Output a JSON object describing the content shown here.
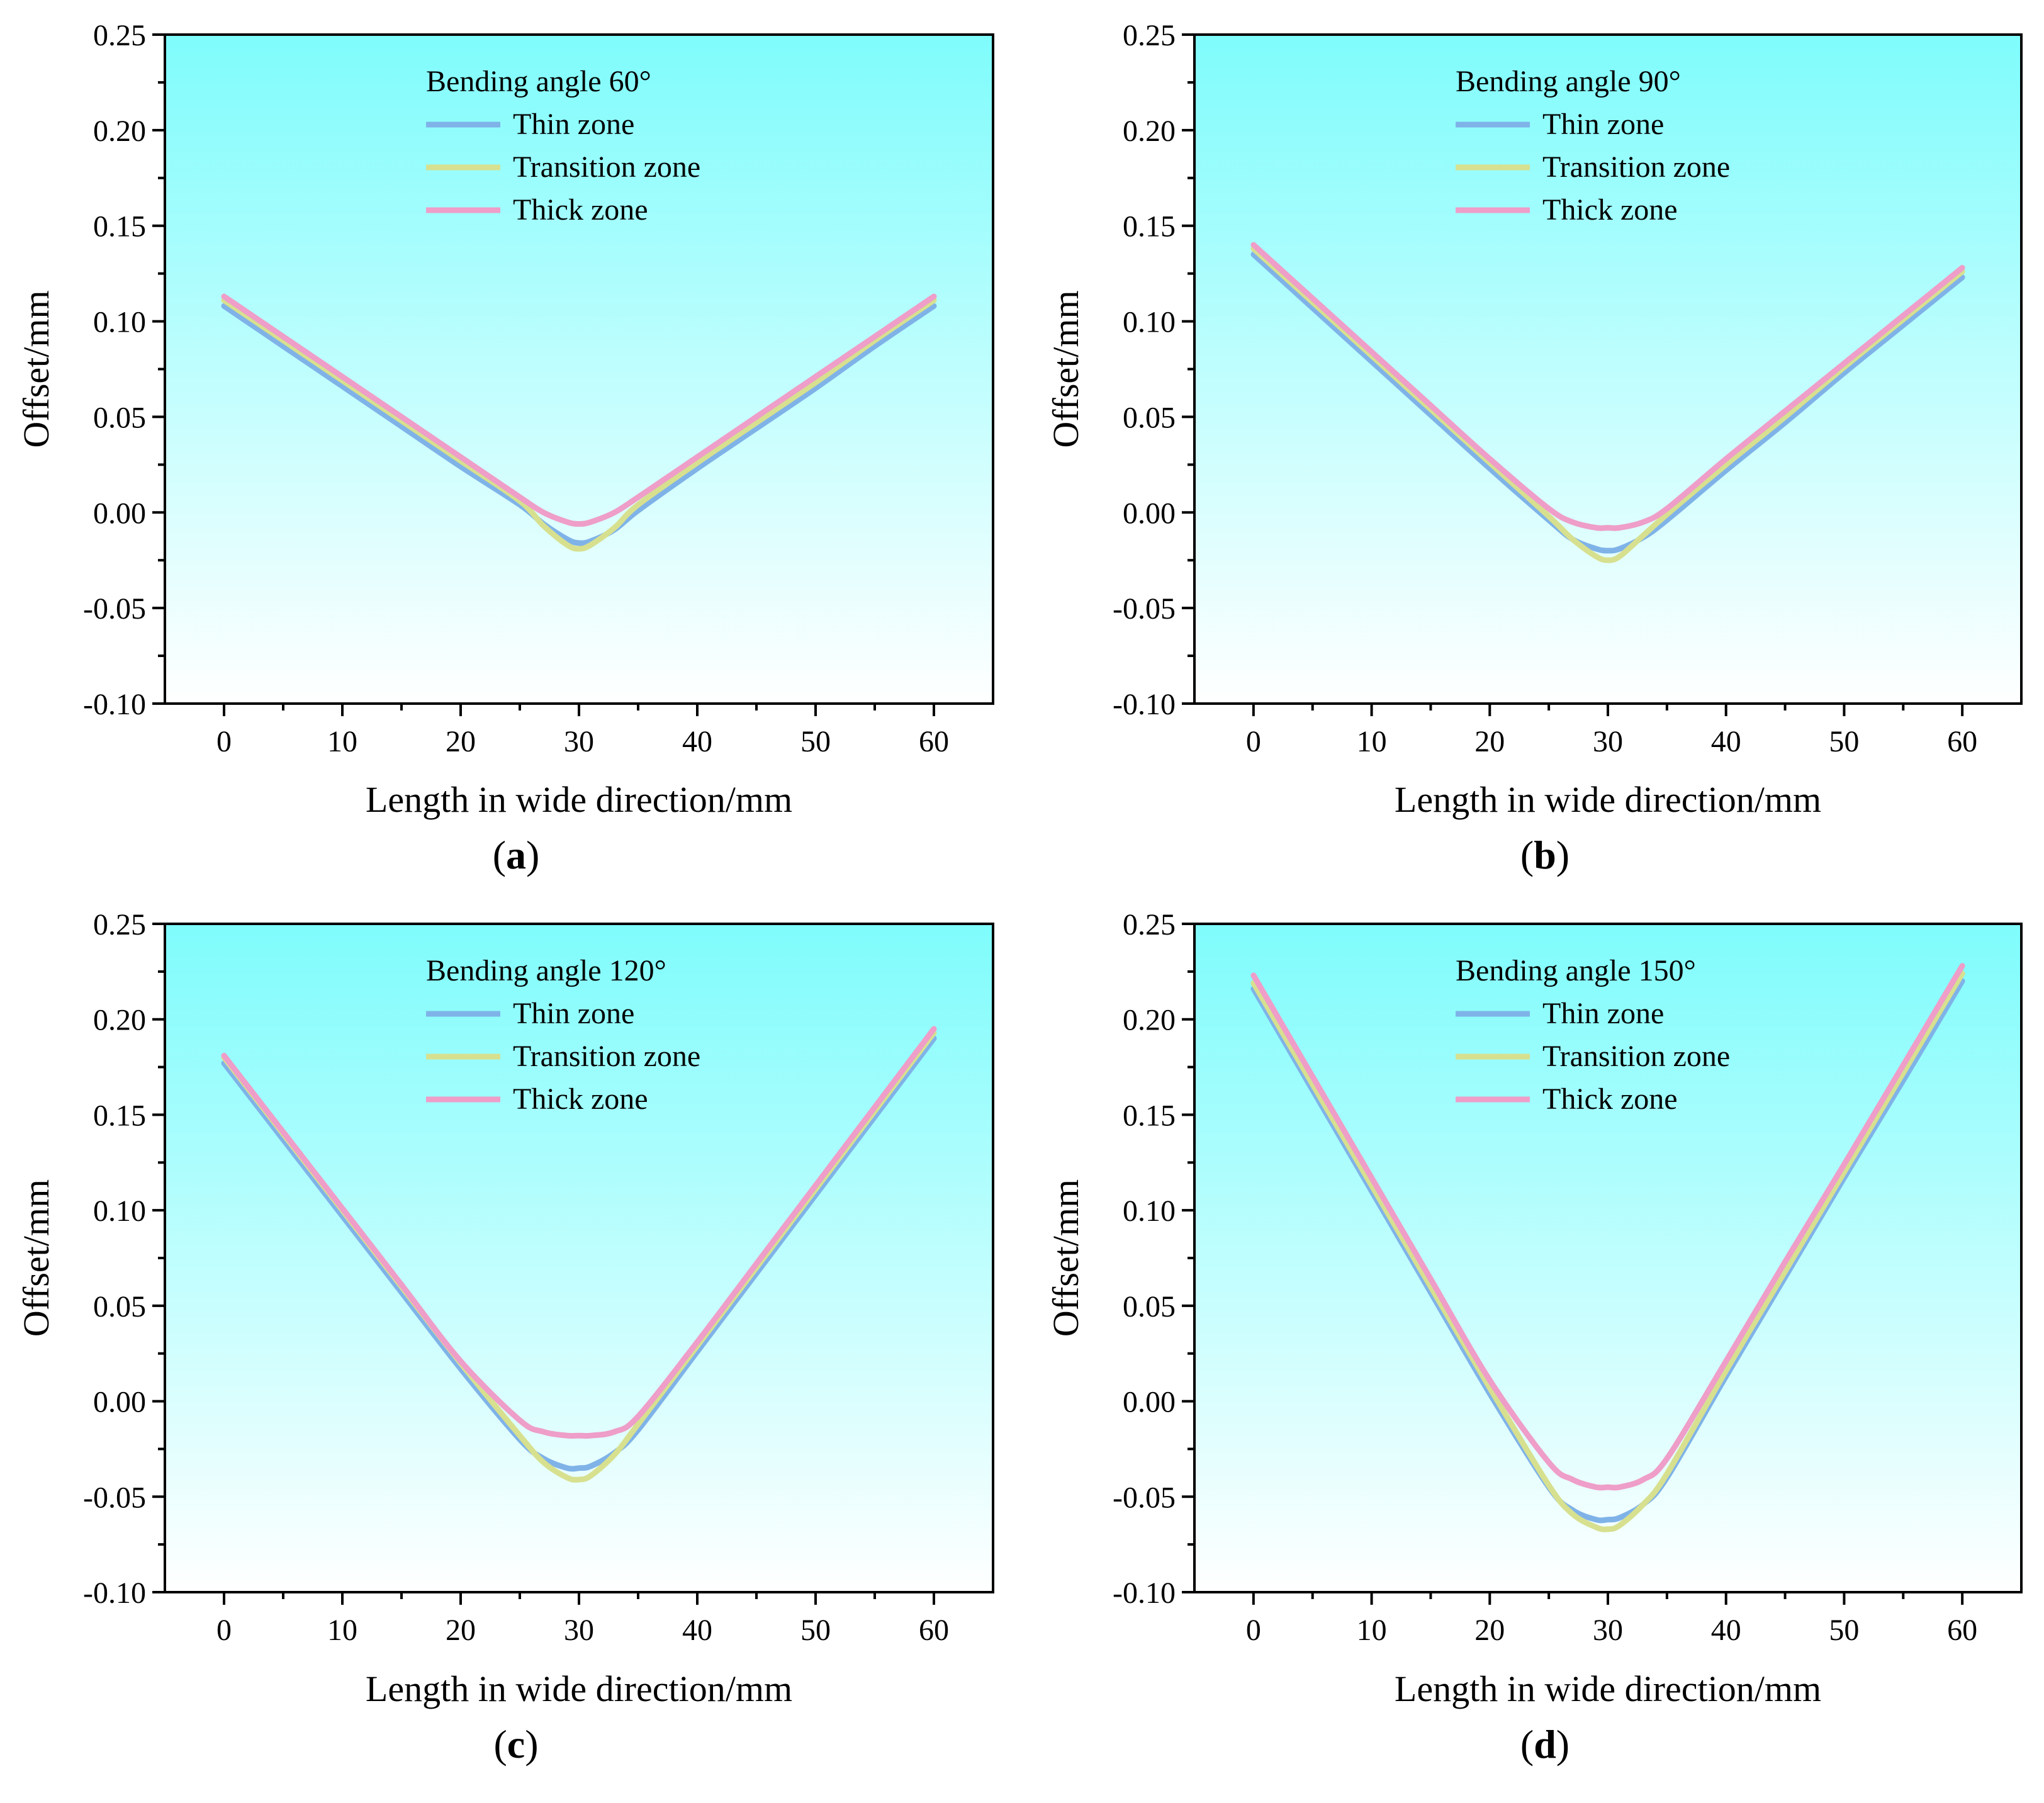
{
  "figure": {
    "colors": {
      "thin": "#7fb3e8",
      "transition": "#d7e08f",
      "thick": "#ee9ec8",
      "bg_top": "#7ffcfc",
      "bg_bottom": "#ffffff",
      "axis": "#000000"
    }
  },
  "chart_data": [
    {
      "type": "line",
      "panel_label": "a",
      "legend_title": "Bending angle 60°",
      "xlabel": "Length in wide direction/mm",
      "ylabel": "Offset/mm",
      "xlim": [
        -5,
        65
      ],
      "ylim": [
        -0.1,
        0.25
      ],
      "x_ticks": [
        "0",
        "10",
        "20",
        "30",
        "40",
        "50",
        "60"
      ],
      "y_ticks": [
        "0.25",
        "0.20",
        "0.15",
        "0.10",
        "0.05",
        "0.00",
        "-0.05",
        "-0.10"
      ],
      "series": [
        {
          "name": "Thin zone",
          "key": "thin",
          "x": [
            0,
            5,
            10,
            15,
            20,
            25,
            27,
            29,
            30,
            31,
            33,
            35,
            40,
            45,
            50,
            55,
            60
          ],
          "values": [
            0.108,
            0.087,
            0.066,
            0.045,
            0.024,
            0.004,
            -0.006,
            -0.014,
            -0.016,
            -0.015,
            -0.009,
            0.001,
            0.023,
            0.044,
            0.065,
            0.087,
            0.108
          ]
        },
        {
          "name": "Transition zone",
          "key": "transition",
          "x": [
            0,
            5,
            10,
            15,
            20,
            25,
            27,
            29,
            30,
            31,
            33,
            35,
            40,
            45,
            50,
            55,
            60
          ],
          "values": [
            0.111,
            0.09,
            0.069,
            0.048,
            0.027,
            0.006,
            -0.007,
            -0.017,
            -0.019,
            -0.017,
            -0.008,
            0.004,
            0.026,
            0.047,
            0.068,
            0.09,
            0.111
          ]
        },
        {
          "name": "Thick zone",
          "key": "thick",
          "x": [
            0,
            5,
            10,
            15,
            20,
            25,
            27,
            29,
            30,
            31,
            33,
            35,
            40,
            45,
            50,
            55,
            60
          ],
          "values": [
            0.113,
            0.092,
            0.071,
            0.05,
            0.029,
            0.008,
            0.0,
            -0.005,
            -0.006,
            -0.005,
            0.0,
            0.008,
            0.029,
            0.05,
            0.071,
            0.092,
            0.113
          ]
        }
      ]
    },
    {
      "type": "line",
      "panel_label": "b",
      "legend_title": "Bending angle 90°",
      "xlabel": "Length in wide direction/mm",
      "ylabel": "Offset/mm",
      "xlim": [
        -5,
        65
      ],
      "ylim": [
        -0.1,
        0.25
      ],
      "x_ticks": [
        "0",
        "10",
        "20",
        "30",
        "40",
        "50",
        "60"
      ],
      "y_ticks": [
        "0.25",
        "0.20",
        "0.15",
        "0.10",
        "0.05",
        "0.00",
        "-0.05",
        "-0.10"
      ],
      "series": [
        {
          "name": "Thin zone",
          "key": "thin",
          "x": [
            0,
            5,
            10,
            15,
            20,
            25,
            27,
            29,
            30,
            31,
            33,
            35,
            40,
            45,
            50,
            55,
            60
          ],
          "values": [
            0.135,
            0.107,
            0.079,
            0.051,
            0.023,
            -0.004,
            -0.014,
            -0.019,
            -0.02,
            -0.019,
            -0.013,
            -0.004,
            0.022,
            0.047,
            0.073,
            0.098,
            0.123
          ]
        },
        {
          "name": "Transition zone",
          "key": "transition",
          "x": [
            0,
            5,
            10,
            15,
            20,
            25,
            27,
            29,
            30,
            31,
            33,
            35,
            40,
            45,
            50,
            55,
            60
          ],
          "values": [
            0.138,
            0.11,
            0.082,
            0.054,
            0.026,
            -0.002,
            -0.014,
            -0.023,
            -0.025,
            -0.023,
            -0.012,
            -0.001,
            0.025,
            0.05,
            0.076,
            0.101,
            0.126
          ]
        },
        {
          "name": "Thick zone",
          "key": "thick",
          "x": [
            0,
            5,
            10,
            15,
            20,
            25,
            27,
            29,
            30,
            31,
            33,
            35,
            40,
            45,
            50,
            55,
            60
          ],
          "values": [
            0.14,
            0.112,
            0.084,
            0.056,
            0.028,
            0.002,
            -0.005,
            -0.008,
            -0.008,
            -0.008,
            -0.005,
            0.002,
            0.028,
            0.053,
            0.078,
            0.103,
            0.128
          ]
        }
      ]
    },
    {
      "type": "line",
      "panel_label": "c",
      "legend_title": "Bending angle 120°",
      "xlabel": "Length in wide direction/mm",
      "ylabel": "Offset/mm",
      "xlim": [
        -5,
        65
      ],
      "ylim": [
        -0.1,
        0.25
      ],
      "x_ticks": [
        "0",
        "10",
        "20",
        "30",
        "40",
        "50",
        "60"
      ],
      "y_ticks": [
        "0.25",
        "0.20",
        "0.15",
        "0.10",
        "0.05",
        "0.00",
        "-0.05",
        "-0.10"
      ],
      "series": [
        {
          "name": "Thin zone",
          "key": "thin",
          "x": [
            0,
            5,
            10,
            15,
            20,
            25,
            27,
            29,
            30,
            31,
            33,
            35,
            40,
            45,
            50,
            55,
            60
          ],
          "values": [
            0.177,
            0.137,
            0.097,
            0.057,
            0.017,
            -0.02,
            -0.03,
            -0.035,
            -0.035,
            -0.034,
            -0.027,
            -0.015,
            0.026,
            0.067,
            0.108,
            0.149,
            0.19
          ]
        },
        {
          "name": "Transition zone",
          "key": "transition",
          "x": [
            0,
            5,
            10,
            15,
            20,
            25,
            27,
            29,
            30,
            31,
            33,
            35,
            40,
            45,
            50,
            55,
            60
          ],
          "values": [
            0.18,
            0.14,
            0.1,
            0.06,
            0.02,
            -0.018,
            -0.032,
            -0.04,
            -0.041,
            -0.039,
            -0.028,
            -0.012,
            0.029,
            0.07,
            0.111,
            0.152,
            0.193
          ]
        },
        {
          "name": "Thick zone",
          "key": "thick",
          "x": [
            0,
            5,
            10,
            15,
            20,
            25,
            27,
            29,
            30,
            31,
            33,
            35,
            40,
            45,
            50,
            55,
            60
          ],
          "values": [
            0.181,
            0.141,
            0.101,
            0.061,
            0.021,
            -0.01,
            -0.016,
            -0.018,
            -0.018,
            -0.018,
            -0.016,
            -0.008,
            0.031,
            0.072,
            0.113,
            0.154,
            0.195
          ]
        }
      ]
    },
    {
      "type": "line",
      "panel_label": "d",
      "legend_title": "Bending angle 150°",
      "xlabel": "Length in wide direction/mm",
      "ylabel": "Offset/mm",
      "xlim": [
        -5,
        65
      ],
      "ylim": [
        -0.1,
        0.25
      ],
      "x_ticks": [
        "0",
        "10",
        "20",
        "30",
        "40",
        "50",
        "60"
      ],
      "y_ticks": [
        "0.25",
        "0.20",
        "0.15",
        "0.10",
        "0.05",
        "0.00",
        "-0.05",
        "-0.10"
      ],
      "series": [
        {
          "name": "Thin zone",
          "key": "thin",
          "x": [
            0,
            5,
            10,
            15,
            20,
            25,
            27,
            29,
            30,
            31,
            33,
            35,
            40,
            45,
            50,
            55,
            60
          ],
          "values": [
            0.216,
            0.163,
            0.11,
            0.057,
            0.004,
            -0.045,
            -0.057,
            -0.062,
            -0.062,
            -0.061,
            -0.054,
            -0.04,
            0.013,
            0.065,
            0.117,
            0.168,
            0.22
          ]
        },
        {
          "name": "Transition zone",
          "key": "transition",
          "x": [
            0,
            5,
            10,
            15,
            20,
            25,
            27,
            29,
            30,
            31,
            33,
            35,
            40,
            45,
            50,
            55,
            60
          ],
          "values": [
            0.219,
            0.166,
            0.113,
            0.06,
            0.007,
            -0.044,
            -0.059,
            -0.066,
            -0.067,
            -0.065,
            -0.054,
            -0.038,
            0.016,
            0.068,
            0.12,
            0.172,
            0.224
          ]
        },
        {
          "name": "Thick zone",
          "key": "thick",
          "x": [
            0,
            5,
            10,
            15,
            20,
            25,
            27,
            29,
            30,
            31,
            33,
            35,
            40,
            45,
            50,
            55,
            60
          ],
          "values": [
            0.223,
            0.17,
            0.117,
            0.064,
            0.011,
            -0.032,
            -0.041,
            -0.045,
            -0.045,
            -0.045,
            -0.041,
            -0.03,
            0.021,
            0.073,
            0.124,
            0.176,
            0.228
          ]
        }
      ]
    }
  ]
}
